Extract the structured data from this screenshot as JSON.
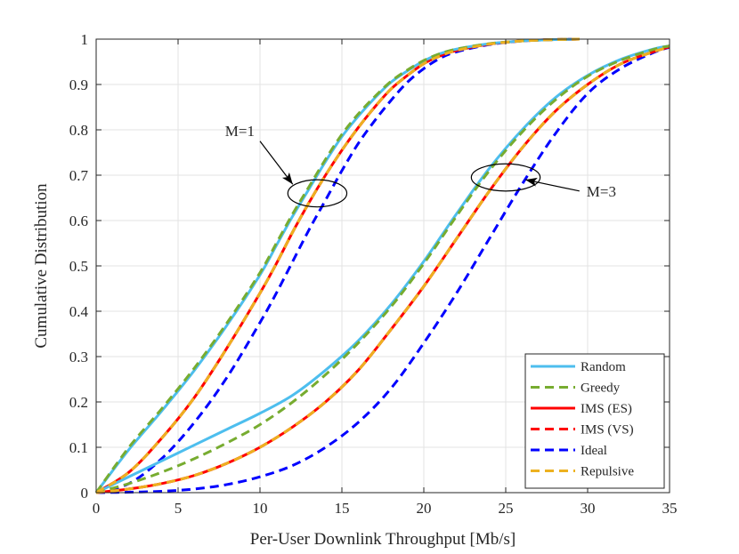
{
  "chart_data": {
    "type": "line",
    "title": "",
    "xlabel": "Per-User Downlink Throughput [Mb/s]",
    "ylabel": "Cumulative Distribution",
    "xlim": [
      0,
      35
    ],
    "ylim": [
      0,
      1
    ],
    "grid": true,
    "legend_position": "bottom-right",
    "x_ticks": [
      0,
      5,
      10,
      15,
      20,
      25,
      30,
      35
    ],
    "x_tick_labels": [
      "0",
      "5",
      "10",
      "15",
      "20",
      "25",
      "30",
      "35"
    ],
    "y_ticks": [
      0,
      0.1,
      0.2,
      0.3,
      0.4,
      0.5,
      0.6,
      0.7,
      0.8,
      0.9,
      1
    ],
    "y_tick_labels": [
      "0",
      "0.1",
      "0.2",
      "0.3",
      "0.4",
      "0.5",
      "0.6",
      "0.7",
      "0.8",
      "0.9",
      "1"
    ],
    "annotations": [
      {
        "text": "M=1",
        "ellipse_center": [
          13.5,
          0.66
        ],
        "ellipse_rx": 1.8,
        "ellipse_ry": 0.03,
        "arrow_from": [
          10.0,
          0.775
        ],
        "arrow_to": [
          12.0,
          0.68
        ]
      },
      {
        "text": "M=3",
        "ellipse_center": [
          25.0,
          0.695
        ],
        "ellipse_rx": 2.1,
        "ellipse_ry": 0.03,
        "arrow_from": [
          29.5,
          0.665
        ],
        "arrow_to": [
          26.2,
          0.69
        ]
      }
    ],
    "series": [
      {
        "name": "Random",
        "group": "M=1",
        "color": "#4DBEEE",
        "dash": "solid",
        "in_legend": true,
        "x": [
          0,
          2,
          4,
          6,
          8,
          10,
          11,
          12,
          13,
          14,
          15,
          16,
          17,
          18,
          19,
          20,
          21,
          22,
          24,
          26,
          28,
          29.5
        ],
        "y": [
          0,
          0.095,
          0.18,
          0.27,
          0.37,
          0.48,
          0.545,
          0.61,
          0.67,
          0.73,
          0.785,
          0.83,
          0.87,
          0.905,
          0.93,
          0.952,
          0.968,
          0.978,
          0.99,
          0.996,
          0.999,
          1.0
        ]
      },
      {
        "name": "Greedy",
        "group": "M=1",
        "color": "#77AC30",
        "dash": "dashed",
        "in_legend": true,
        "x": [
          0,
          2,
          4,
          6,
          8,
          10,
          11,
          12,
          13,
          14,
          15,
          16,
          17,
          18,
          19,
          20,
          21,
          22,
          24,
          26,
          28,
          29.5
        ],
        "y": [
          0,
          0.1,
          0.185,
          0.275,
          0.375,
          0.485,
          0.55,
          0.615,
          0.675,
          0.735,
          0.79,
          0.835,
          0.873,
          0.907,
          0.932,
          0.953,
          0.968,
          0.978,
          0.99,
          0.996,
          0.999,
          1.0
        ]
      },
      {
        "name": "IMS (ES)",
        "group": "M=1",
        "color": "#FF0000",
        "dash": "solid",
        "in_legend": true,
        "x": [
          0,
          2,
          4,
          6,
          8,
          10,
          11,
          12,
          13,
          14,
          15,
          16,
          17,
          18,
          19,
          20,
          21,
          22,
          24,
          26,
          28,
          29.5
        ],
        "y": [
          0,
          0.045,
          0.12,
          0.21,
          0.32,
          0.44,
          0.505,
          0.575,
          0.64,
          0.7,
          0.755,
          0.805,
          0.85,
          0.89,
          0.92,
          0.946,
          0.963,
          0.975,
          0.989,
          0.996,
          0.999,
          1.0
        ]
      },
      {
        "name": "IMS (VS)",
        "group": "M=1",
        "color": "#FF0000",
        "dash": "dashed",
        "in_legend": true,
        "x": [
          0,
          2,
          4,
          6,
          8,
          10,
          11,
          12,
          13,
          14,
          15,
          16,
          17,
          18,
          19,
          20,
          21,
          22,
          24,
          26,
          28,
          29.5
        ],
        "y": [
          0,
          0.045,
          0.12,
          0.21,
          0.32,
          0.44,
          0.505,
          0.575,
          0.64,
          0.7,
          0.755,
          0.805,
          0.85,
          0.89,
          0.92,
          0.946,
          0.963,
          0.975,
          0.989,
          0.996,
          0.999,
          1.0
        ]
      },
      {
        "name": "Ideal",
        "group": "M=1",
        "color": "#0000FF",
        "dash": "dashed",
        "in_legend": true,
        "x": [
          0,
          2,
          4,
          6,
          8,
          10,
          11,
          12,
          13,
          14,
          15,
          16,
          17,
          18,
          19,
          20,
          21,
          22,
          24,
          26,
          28,
          29.5
        ],
        "y": [
          0,
          0.02,
          0.075,
          0.155,
          0.255,
          0.375,
          0.44,
          0.51,
          0.58,
          0.645,
          0.71,
          0.77,
          0.82,
          0.865,
          0.905,
          0.935,
          0.958,
          0.972,
          0.988,
          0.996,
          0.999,
          1.0
        ]
      },
      {
        "name": "Repulsive",
        "group": "M=1",
        "color": "#EDB120",
        "dash": "dashed",
        "in_legend": true,
        "x": [
          0,
          2,
          4,
          6,
          8,
          10,
          11,
          12,
          13,
          14,
          15,
          16,
          17,
          18,
          19,
          20,
          21,
          22,
          24,
          26,
          28,
          29.5
        ],
        "y": [
          0,
          0.045,
          0.12,
          0.21,
          0.32,
          0.44,
          0.505,
          0.575,
          0.64,
          0.7,
          0.755,
          0.805,
          0.85,
          0.89,
          0.92,
          0.946,
          0.963,
          0.975,
          0.989,
          0.996,
          0.999,
          1.0
        ]
      },
      {
        "name": "Random",
        "group": "M=3",
        "color": "#4DBEEE",
        "dash": "solid",
        "in_legend": false,
        "x": [
          0,
          2,
          4,
          6,
          8,
          10,
          12,
          14,
          16,
          18,
          20,
          22,
          24,
          26,
          28,
          30,
          32,
          34,
          35
        ],
        "y": [
          0,
          0.035,
          0.07,
          0.105,
          0.14,
          0.175,
          0.215,
          0.27,
          0.335,
          0.415,
          0.51,
          0.615,
          0.715,
          0.8,
          0.87,
          0.92,
          0.955,
          0.978,
          0.985
        ]
      },
      {
        "name": "Greedy",
        "group": "M=3",
        "color": "#77AC30",
        "dash": "dashed",
        "in_legend": false,
        "x": [
          0,
          2,
          4,
          6,
          8,
          10,
          12,
          14,
          16,
          18,
          20,
          22,
          24,
          26,
          28,
          30,
          32,
          34,
          35
        ],
        "y": [
          0,
          0.02,
          0.045,
          0.075,
          0.11,
          0.15,
          0.2,
          0.26,
          0.33,
          0.41,
          0.505,
          0.61,
          0.71,
          0.795,
          0.865,
          0.918,
          0.953,
          0.977,
          0.985
        ]
      },
      {
        "name": "IMS (ES)",
        "group": "M=3",
        "color": "#FF0000",
        "dash": "solid",
        "in_legend": false,
        "x": [
          0,
          2,
          4,
          6,
          8,
          10,
          12,
          14,
          16,
          18,
          20,
          22,
          24,
          26,
          28,
          30,
          32,
          34,
          35
        ],
        "y": [
          0,
          0.008,
          0.02,
          0.038,
          0.065,
          0.1,
          0.145,
          0.2,
          0.27,
          0.36,
          0.455,
          0.56,
          0.665,
          0.76,
          0.84,
          0.9,
          0.945,
          0.972,
          0.983
        ]
      },
      {
        "name": "IMS (VS)",
        "group": "M=3",
        "color": "#FF0000",
        "dash": "dashed",
        "in_legend": false,
        "x": [
          0,
          2,
          4,
          6,
          8,
          10,
          12,
          14,
          16,
          18,
          20,
          22,
          24,
          26,
          28,
          30,
          32,
          34,
          35
        ],
        "y": [
          0,
          0.008,
          0.02,
          0.038,
          0.065,
          0.1,
          0.145,
          0.2,
          0.27,
          0.36,
          0.455,
          0.56,
          0.665,
          0.76,
          0.84,
          0.9,
          0.945,
          0.972,
          0.983
        ]
      },
      {
        "name": "Ideal",
        "group": "M=3",
        "color": "#0000FF",
        "dash": "dashed",
        "in_legend": false,
        "x": [
          0,
          2,
          4,
          6,
          8,
          10,
          12,
          14,
          16,
          18,
          20,
          22,
          24,
          26,
          28,
          30,
          32,
          34,
          35
        ],
        "y": [
          0,
          0.001,
          0.003,
          0.008,
          0.018,
          0.035,
          0.06,
          0.1,
          0.155,
          0.23,
          0.33,
          0.44,
          0.56,
          0.68,
          0.79,
          0.88,
          0.935,
          0.97,
          0.982
        ]
      },
      {
        "name": "Repulsive",
        "group": "M=3",
        "color": "#EDB120",
        "dash": "dashed",
        "in_legend": false,
        "x": [
          0,
          2,
          4,
          6,
          8,
          10,
          12,
          14,
          16,
          18,
          20,
          22,
          24,
          26,
          28,
          30,
          32,
          34,
          35
        ],
        "y": [
          0,
          0.008,
          0.02,
          0.038,
          0.065,
          0.1,
          0.145,
          0.2,
          0.27,
          0.36,
          0.455,
          0.56,
          0.665,
          0.76,
          0.84,
          0.9,
          0.945,
          0.972,
          0.983
        ]
      }
    ]
  }
}
